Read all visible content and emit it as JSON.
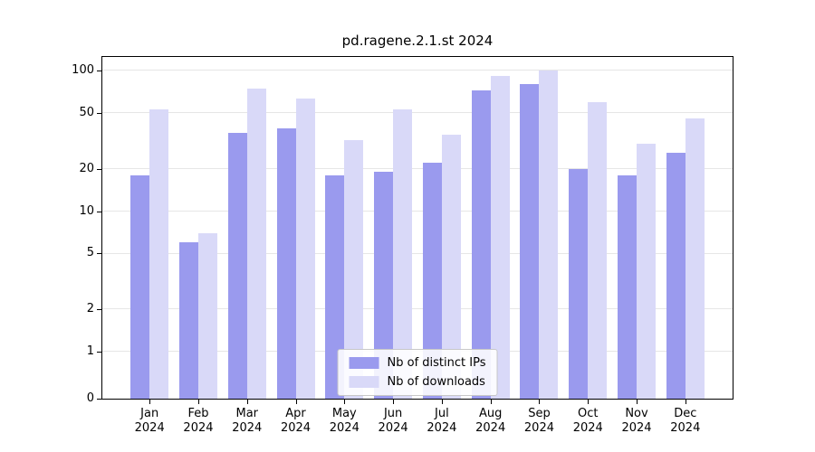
{
  "chart_data": {
    "type": "bar",
    "title": "pd.ragene.2.1.st 2024",
    "year_label": "2024",
    "categories": [
      "Jan",
      "Feb",
      "Mar",
      "Apr",
      "May",
      "Jun",
      "Jul",
      "Aug",
      "Sep",
      "Oct",
      "Nov",
      "Dec"
    ],
    "series": [
      {
        "name": "Nb of distinct IPs",
        "color": "#9a9aee",
        "values": [
          18,
          6,
          36,
          39,
          18,
          19,
          22,
          72,
          80,
          20,
          18,
          26
        ]
      },
      {
        "name": "Nb of downloads",
        "color": "#d9d9f8",
        "values": [
          53,
          7,
          75,
          63,
          32,
          53,
          35,
          92,
          100,
          60,
          30,
          46
        ]
      }
    ],
    "yticks": [
      0,
      1,
      2,
      5,
      10,
      20,
      50,
      100
    ],
    "yscale": "log above 1, linear 0-1",
    "ylim": [
      0,
      110
    ],
    "xlabel": "",
    "ylabel": "",
    "grid": true,
    "legend_position": "lower center"
  },
  "colors": {
    "grid": "#e6e6e6",
    "axis": "#000000",
    "background": "#ffffff"
  }
}
